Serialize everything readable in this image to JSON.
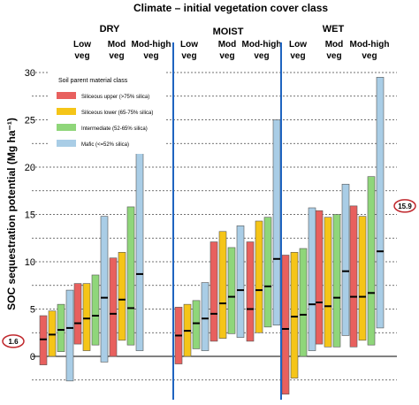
{
  "chart_data": {
    "type": "bar",
    "title": "Climate – initial vegetation cover class",
    "ylabel": "SOC sequestration potential  (Mg ha⁻¹)",
    "ylim": [
      -4,
      31
    ],
    "yticks": [
      0,
      5,
      10,
      15,
      20,
      25,
      30
    ],
    "grid": "dotted horizontal",
    "climate_groups": [
      "DRY",
      "MOIST",
      "WET"
    ],
    "veg_classes": [
      [
        "Low",
        "veg"
      ],
      [
        "Mod",
        "veg"
      ],
      [
        "Mod-high",
        "veg"
      ]
    ],
    "legend": {
      "title": "Soil parent material class",
      "position": "top-left",
      "entries": [
        {
          "label": "Siliceous upper (>75% silica)",
          "color": "#e8605e"
        },
        {
          "label": "Siliceous lower (65-75% silica)",
          "color": "#f5c518"
        },
        {
          "label": "Intermediate (52-65% silica)",
          "color": "#8fd67a"
        },
        {
          "label": "Mafic (<=52% silica)",
          "color": "#a9cde6"
        }
      ]
    },
    "annotations": [
      {
        "text": "1.6",
        "y": 1.6,
        "side": "left"
      },
      {
        "text": "15.9",
        "y": 15.9,
        "side": "right"
      }
    ],
    "series": [
      {
        "name": "Siliceous upper (>75% silica)",
        "color": "#e8605e",
        "boxes": [
          {
            "low": -0.9,
            "high": 4.3,
            "median": 1.8
          },
          {
            "low": 1.3,
            "high": 7.7,
            "median": 3.5
          },
          {
            "low": 0.0,
            "high": 10.4,
            "median": 4.5
          },
          {
            "low": -0.8,
            "high": 5.2,
            "median": 2.2
          },
          {
            "low": 1.6,
            "high": 12.1,
            "median": 4.5
          },
          {
            "low": 1.6,
            "high": 12.1,
            "median": 5.0
          },
          {
            "low": -4.0,
            "high": 10.7,
            "median": 2.9
          },
          {
            "low": 1.3,
            "high": 15.4,
            "median": 5.7
          },
          {
            "low": 1.0,
            "high": 15.9,
            "median": 6.3
          }
        ]
      },
      {
        "name": "Siliceous lower (65-75% silica)",
        "color": "#f5c518",
        "boxes": [
          {
            "low": 0.0,
            "high": 4.8,
            "median": 2.3
          },
          {
            "low": 0.6,
            "high": 7.7,
            "median": 4.0
          },
          {
            "low": 1.7,
            "high": 11.0,
            "median": 6.0
          },
          {
            "low": 0.0,
            "high": 5.5,
            "median": 2.7
          },
          {
            "low": 1.9,
            "high": 13.2,
            "median": 5.6
          },
          {
            "low": 2.5,
            "high": 14.3,
            "median": 7.0
          },
          {
            "low": -2.3,
            "high": 11.0,
            "median": 4.2
          },
          {
            "low": 1.0,
            "high": 14.7,
            "median": 5.3
          },
          {
            "low": 1.7,
            "high": 14.8,
            "median": 6.3
          }
        ]
      },
      {
        "name": "Intermediate (52-65% silica)",
        "color": "#8fd67a",
        "boxes": [
          {
            "low": 0.5,
            "high": 5.5,
            "median": 2.8
          },
          {
            "low": 1.2,
            "high": 8.6,
            "median": 4.3
          },
          {
            "low": 1.2,
            "high": 15.8,
            "median": 5.1
          },
          {
            "low": 0.8,
            "high": 5.9,
            "median": 3.5
          },
          {
            "low": 2.4,
            "high": 11.5,
            "median": 6.3
          },
          {
            "low": 3.1,
            "high": 14.7,
            "median": 7.4
          },
          {
            "low": 0.0,
            "high": 11.4,
            "median": 4.4
          },
          {
            "low": 1.0,
            "high": 15.0,
            "median": 6.2
          },
          {
            "low": 1.2,
            "high": 19.0,
            "median": 6.7
          }
        ]
      },
      {
        "name": "Mafic (<=52% silica)",
        "color": "#a9cde6",
        "boxes": [
          {
            "low": -2.6,
            "high": 7.0,
            "median": 3.0
          },
          {
            "low": -0.6,
            "high": 14.8,
            "median": 6.2
          },
          {
            "low": 0.6,
            "high": 21.8,
            "median": 8.7
          },
          {
            "low": 0.6,
            "high": 7.8,
            "median": 4.0
          },
          {
            "low": 2.0,
            "high": 13.8,
            "median": 7.0
          },
          {
            "low": 3.3,
            "high": 25.0,
            "median": 10.3
          },
          {
            "low": 0.6,
            "high": 15.7,
            "median": 5.5
          },
          {
            "low": 2.2,
            "high": 18.2,
            "median": 9.0
          },
          {
            "low": 3.0,
            "high": 29.5,
            "median": 11.1
          }
        ]
      }
    ]
  }
}
